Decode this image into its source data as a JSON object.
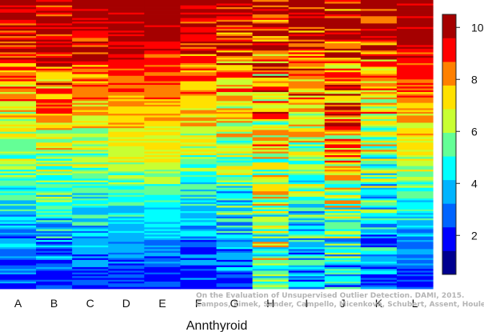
{
  "chart_data": {
    "type": "heatmap",
    "title": "",
    "xlabel": "Annthyroid",
    "ylabel": "",
    "categories": [
      "A",
      "B",
      "C",
      "D",
      "E",
      "F",
      "G",
      "H",
      "I",
      "J",
      "K",
      "L"
    ],
    "colorbar": {
      "min": 0.5,
      "max": 10.5,
      "ticks": [
        2,
        4,
        6,
        8,
        10
      ],
      "colors": [
        "#00008f",
        "#0000ff",
        "#0064ff",
        "#00b4ff",
        "#00ffff",
        "#64ff96",
        "#c8ff32",
        "#ffe100",
        "#ff8000",
        "#ff0000",
        "#a50000"
      ]
    },
    "column_profiles": [
      {
        "category": "A",
        "top": 10.5,
        "mid": 5.8,
        "bottom": 1.0,
        "noise": 1.6
      },
      {
        "category": "B",
        "top": 10.3,
        "mid": 6.2,
        "bottom": 1.3,
        "noise": 1.8
      },
      {
        "category": "C",
        "top": 10.5,
        "mid": 6.0,
        "bottom": 1.2,
        "noise": 1.3
      },
      {
        "category": "D",
        "top": 10.6,
        "mid": 6.4,
        "bottom": 1.0,
        "noise": 0.9
      },
      {
        "category": "E",
        "top": 10.6,
        "mid": 6.6,
        "bottom": 1.1,
        "noise": 0.8
      },
      {
        "category": "F",
        "top": 10.5,
        "mid": 5.8,
        "bottom": 1.0,
        "noise": 1.6
      },
      {
        "category": "G",
        "top": 10.4,
        "mid": 5.6,
        "bottom": 1.6,
        "noise": 2.0
      },
      {
        "category": "H",
        "top": 9.6,
        "mid": 6.4,
        "bottom": 5.0,
        "noise": 2.6
      },
      {
        "category": "I",
        "top": 10.3,
        "mid": 6.2,
        "bottom": 2.0,
        "noise": 2.2
      },
      {
        "category": "J",
        "top": 10.2,
        "mid": 7.4,
        "bottom": 2.8,
        "noise": 2.6
      },
      {
        "category": "K",
        "top": 10.3,
        "mid": 5.8,
        "bottom": 1.8,
        "noise": 2.2
      },
      {
        "category": "L",
        "top": 10.6,
        "mid": 6.5,
        "bottom": 1.0,
        "noise": 1.1
      }
    ],
    "rows": 160
  },
  "watermark": {
    "line1": "On the Evaluation of Unsupervised Outlier Detection. DAMI, 2015.",
    "line2": "Campos, Zimek, Sander, Campello, Micenková, Schubert, Assent, Houle"
  }
}
